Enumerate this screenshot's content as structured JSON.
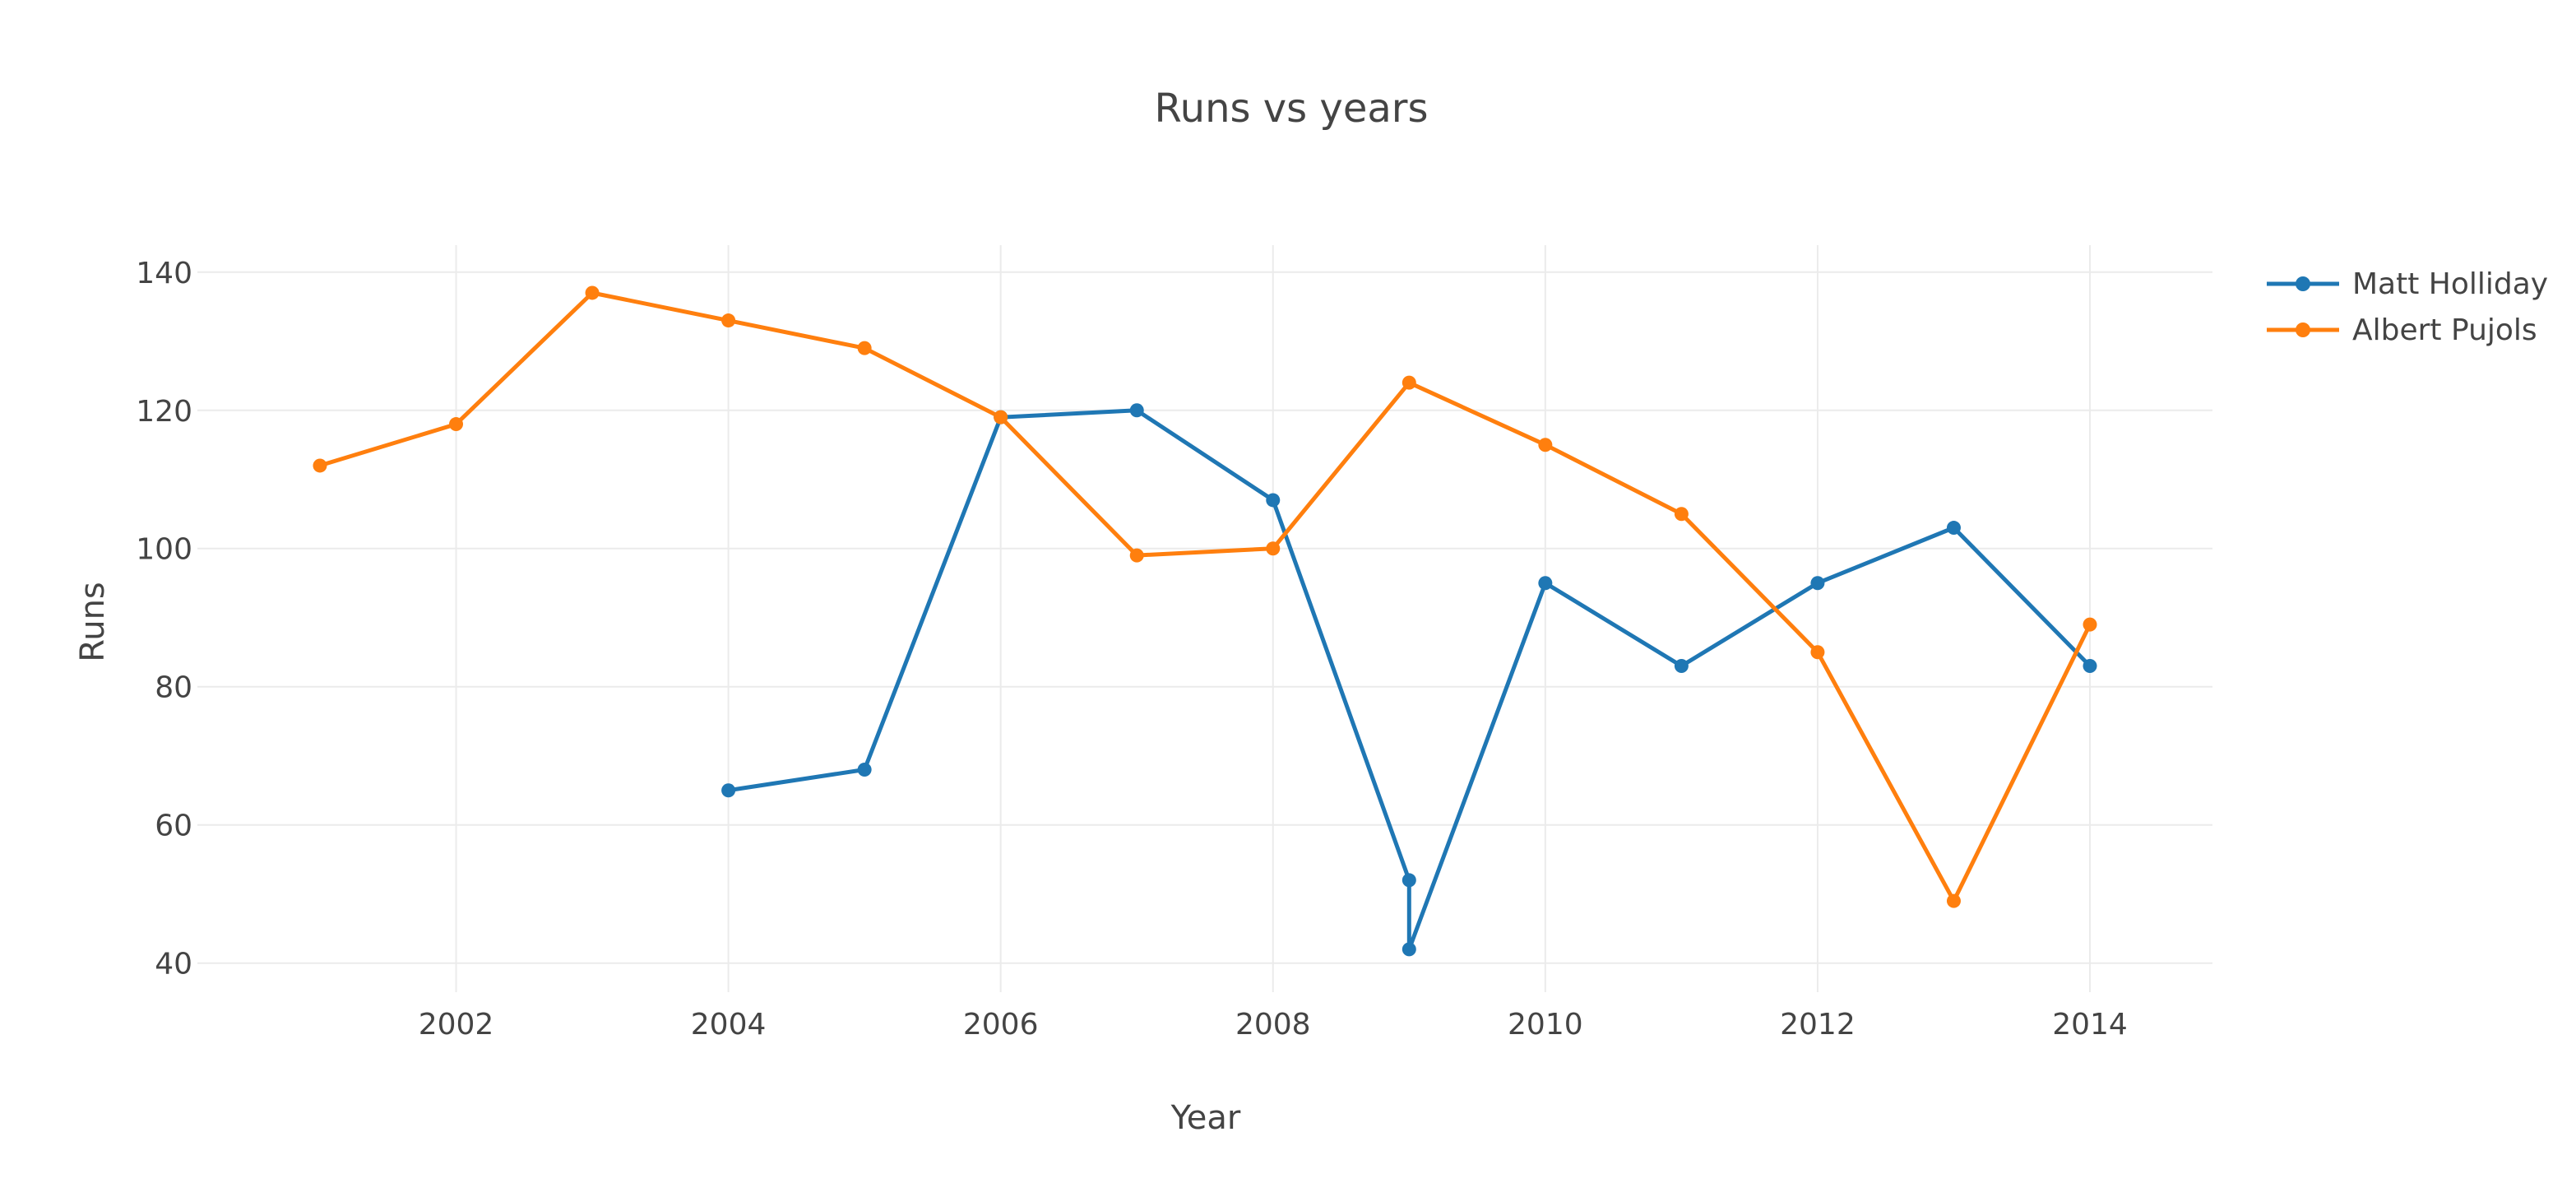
{
  "chart_data": {
    "type": "line",
    "title": "Runs vs years",
    "xlabel": "Year",
    "ylabel": "Runs",
    "xlim": [
      2000.1,
      2014.9
    ],
    "ylim": [
      35.8,
      143.9
    ],
    "x_ticks": [
      2002,
      2004,
      2006,
      2008,
      2010,
      2012,
      2014
    ],
    "y_ticks": [
      40,
      60,
      80,
      100,
      120,
      140
    ],
    "grid": true,
    "legend_position": "top-right",
    "series": [
      {
        "name": "Matt Holliday",
        "color": "#1f77b4",
        "x": [
          2004,
          2005,
          2006,
          2007,
          2008,
          2009,
          2009,
          2010,
          2011,
          2012,
          2013,
          2014
        ],
        "y": [
          65,
          68,
          119,
          120,
          107,
          52,
          42,
          95,
          83,
          95,
          103,
          83
        ]
      },
      {
        "name": "Albert Pujols",
        "color": "#ff7f0e",
        "x": [
          2001,
          2002,
          2003,
          2004,
          2005,
          2006,
          2007,
          2008,
          2009,
          2010,
          2011,
          2012,
          2013,
          2014
        ],
        "y": [
          112,
          118,
          137,
          133,
          129,
          119,
          99,
          100,
          124,
          115,
          105,
          85,
          49,
          89
        ]
      }
    ]
  }
}
